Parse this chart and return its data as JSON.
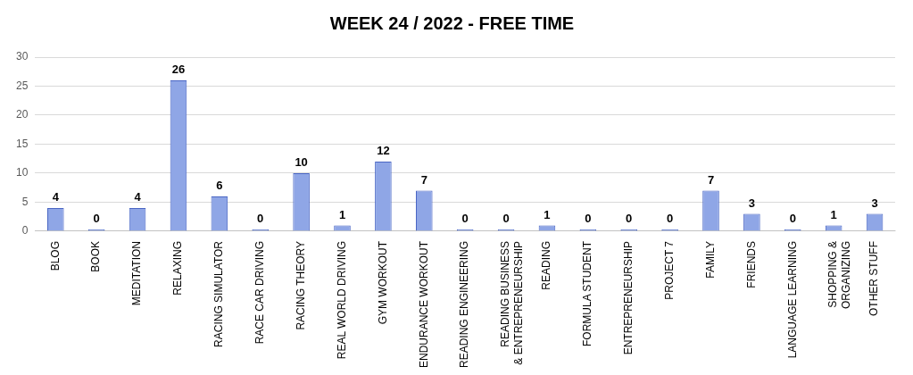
{
  "chart_data": {
    "type": "bar",
    "title": "WEEK 24 / 2022 - FREE TIME",
    "categories": [
      "BLOG",
      "BOOK",
      "MEDITATION",
      "RELAXING",
      "RACING SIMULATOR",
      "RACE CAR DRIVING",
      "RACING THEORY",
      "REAL WORLD DRIVING",
      "GYM WORKOUT",
      "ENDURANCE WORKOUT",
      "READING ENGINEERING",
      "READING BUSINESS & ENTREPRENEURSHIP",
      "READING",
      "FORMULA STUDENT",
      "ENTREPRENEURSHIP",
      "PROJECT 7",
      "FAMILY",
      "FRIENDS",
      "LANGUAGE LEARNING",
      "SHOPPING & ORGANIZING",
      "OTHER STUFF"
    ],
    "values": [
      4,
      0,
      4,
      26,
      6,
      0,
      10,
      1,
      12,
      7,
      0,
      0,
      1,
      0,
      0,
      0,
      7,
      3,
      0,
      1,
      3
    ],
    "color": "#8fa6e6",
    "ylim": [
      0,
      30
    ],
    "yticks": [
      0,
      5,
      10,
      15,
      20,
      25,
      30
    ],
    "grid": "y",
    "legend": false,
    "data_labels": true
  }
}
